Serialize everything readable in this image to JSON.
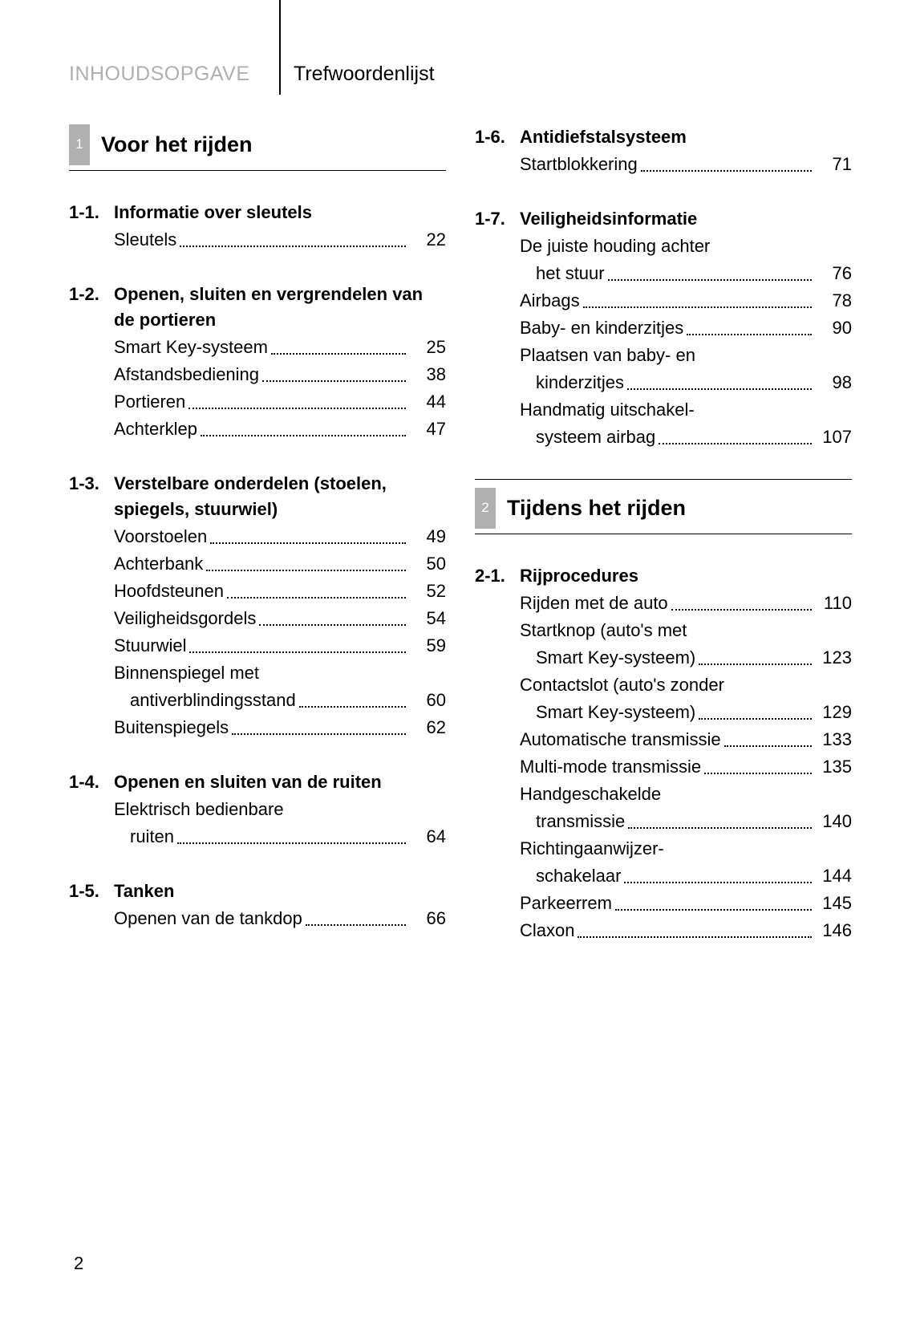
{
  "header": {
    "left": "INHOUDSOPGAVE",
    "right": "Trefwoordenlijst"
  },
  "pageNumber": "2",
  "leftCol": {
    "chapter": {
      "num": "1",
      "title": "Voor het rijden"
    },
    "sections": [
      {
        "num": "1-1.",
        "title": "Informatie over sleutels",
        "entries": [
          {
            "label": "Sleutels",
            "page": "22"
          }
        ]
      },
      {
        "num": "1-2.",
        "title": "Openen, sluiten en vergrendelen van de portieren",
        "entries": [
          {
            "label": "Smart Key-systeem",
            "page": "25"
          },
          {
            "label": "Afstandsbediening",
            "page": "38"
          },
          {
            "label": "Portieren",
            "page": "44"
          },
          {
            "label": "Achterklep",
            "page": "47"
          }
        ]
      },
      {
        "num": "1-3.",
        "title": "Verstelbare onderdelen (stoelen, spiegels, stuurwiel)",
        "entries": [
          {
            "label": "Voorstoelen",
            "page": "49"
          },
          {
            "label": "Achterbank",
            "page": "50"
          },
          {
            "label": "Hoofdsteunen",
            "page": "52"
          },
          {
            "label": "Veiligheidsgordels",
            "page": "54"
          },
          {
            "label": "Stuurwiel",
            "page": "59"
          },
          {
            "label": "Binnenspiegel met",
            "cont": "antiverblindingsstand",
            "page": "60"
          },
          {
            "label": "Buitenspiegels",
            "page": "62"
          }
        ]
      },
      {
        "num": "1-4.",
        "title": "Openen en sluiten van de ruiten",
        "entries": [
          {
            "label": "Elektrisch bedienbare",
            "cont": "ruiten",
            "page": "64"
          }
        ]
      },
      {
        "num": "1-5.",
        "title": "Tanken",
        "entries": [
          {
            "label": "Openen van de tankdop",
            "page": "66"
          }
        ]
      }
    ]
  },
  "rightCol": {
    "topSections": [
      {
        "num": "1-6.",
        "title": "Antidiefstalsysteem",
        "entries": [
          {
            "label": "Startblokkering",
            "page": "71"
          }
        ]
      },
      {
        "num": "1-7.",
        "title": "Veiligheidsinformatie",
        "entries": [
          {
            "label": "De juiste houding achter",
            "cont": "het stuur",
            "page": "76"
          },
          {
            "label": "Airbags",
            "page": "78"
          },
          {
            "label": "Baby- en kinderzitjes",
            "page": "90"
          },
          {
            "label": "Plaatsen van baby- en",
            "cont": "kinderzitjes",
            "page": "98"
          },
          {
            "label": "Handmatig uitschakel-",
            "cont": "systeem airbag",
            "page": "107"
          }
        ]
      }
    ],
    "chapter": {
      "num": "2",
      "title": "Tijdens het rijden"
    },
    "sections": [
      {
        "num": "2-1.",
        "title": "Rijprocedures",
        "entries": [
          {
            "label": "Rijden met de auto",
            "page": "110"
          },
          {
            "label": "Startknop (auto's met",
            "cont": "Smart Key-systeem)",
            "page": "123"
          },
          {
            "label": "Contactslot (auto's zonder",
            "cont": "Smart Key-systeem)",
            "page": "129"
          },
          {
            "label": "Automatische transmissie",
            "page": "133"
          },
          {
            "label": "Multi-mode transmissie",
            "page": "135"
          },
          {
            "label": "Handgeschakelde",
            "cont": "transmissie",
            "page": "140"
          },
          {
            "label": "Richtingaanwijzer-",
            "cont": "schakelaar",
            "page": "144"
          },
          {
            "label": "Parkeerrem",
            "page": "145"
          },
          {
            "label": "Claxon",
            "page": "146"
          }
        ]
      }
    ]
  }
}
